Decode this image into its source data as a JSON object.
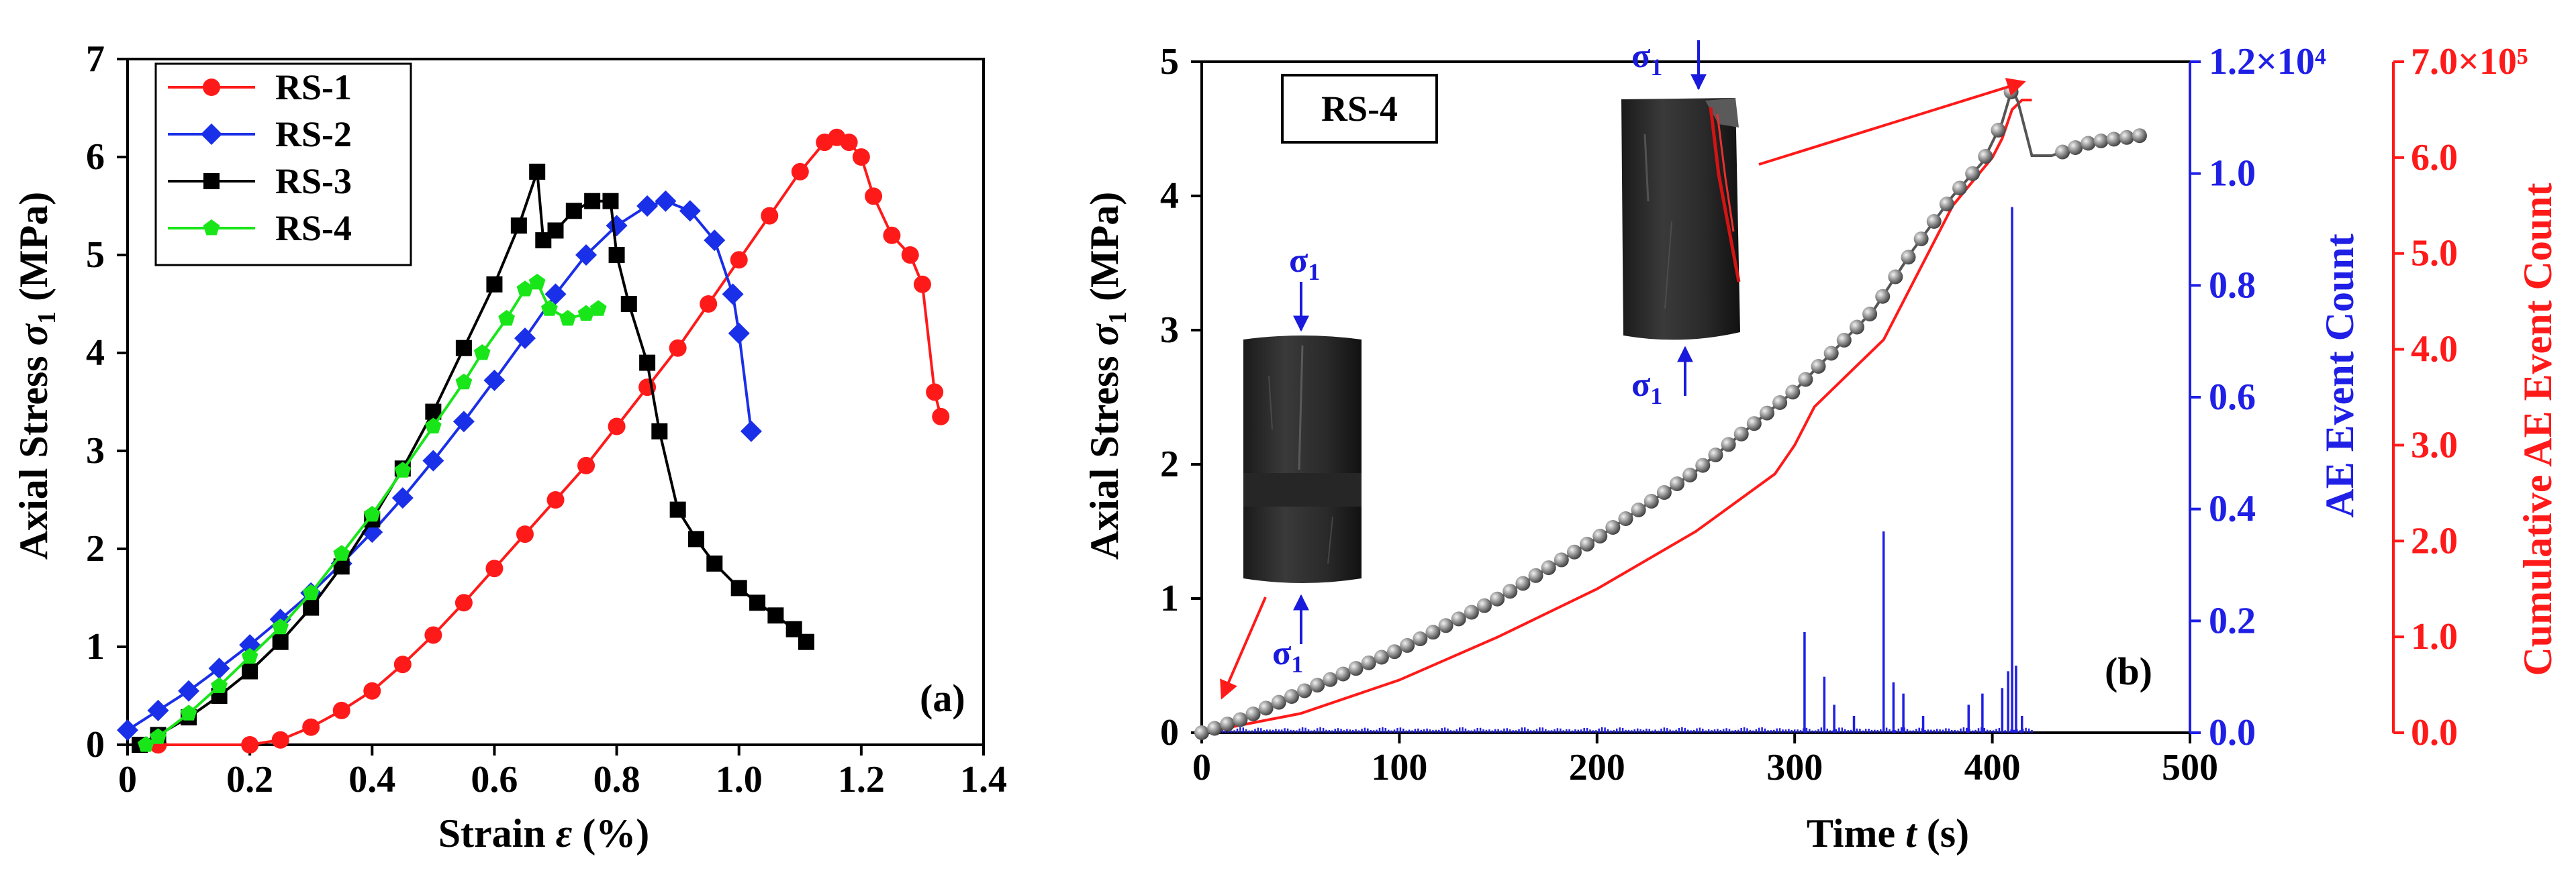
{
  "colors": {
    "rs1": "#ff1a1a",
    "rs2": "#1a2fe8",
    "rs3": "#000000",
    "rs4": "#19e619",
    "ae": "#1f1fe6",
    "cum": "#ff1a1a",
    "stress_marker": "#8a8a8a"
  },
  "chart_data": [
    {
      "type": "line",
      "panel_label": "(a)",
      "ylabel_parts": [
        "Axial Stress ",
        "σ",
        "1",
        " (MPa)"
      ],
      "xlabel_parts": [
        "Strain ",
        "ε",
        " (%)"
      ],
      "xlim": [
        0,
        1.4
      ],
      "ylim": [
        0,
        7
      ],
      "xticks": [
        "0",
        "0.2",
        "0.4",
        "0.6",
        "0.8",
        "1.0",
        "1.2",
        "1.4"
      ],
      "yticks": [
        "0",
        "1",
        "2",
        "3",
        "4",
        "5",
        "6",
        "7"
      ],
      "legend_position": "top-left",
      "series": [
        {
          "name": "RS-1",
          "marker": "circle",
          "points": [
            [
              0.05,
              0
            ],
            [
              0.2,
              0
            ],
            [
              0.25,
              0.05
            ],
            [
              0.3,
              0.18
            ],
            [
              0.35,
              0.35
            ],
            [
              0.4,
              0.55
            ],
            [
              0.45,
              0.82
            ],
            [
              0.5,
              1.12
            ],
            [
              0.55,
              1.45
            ],
            [
              0.6,
              1.8
            ],
            [
              0.65,
              2.15
            ],
            [
              0.7,
              2.5
            ],
            [
              0.75,
              2.85
            ],
            [
              0.8,
              3.25
            ],
            [
              0.85,
              3.65
            ],
            [
              0.9,
              4.05
            ],
            [
              0.95,
              4.5
            ],
            [
              1.0,
              4.95
            ],
            [
              1.05,
              5.4
            ],
            [
              1.1,
              5.85
            ],
            [
              1.14,
              6.15
            ],
            [
              1.16,
              6.2
            ],
            [
              1.18,
              6.15
            ],
            [
              1.2,
              6.0
            ],
            [
              1.22,
              5.6
            ],
            [
              1.25,
              5.2
            ],
            [
              1.28,
              5.0
            ],
            [
              1.3,
              4.7
            ],
            [
              1.32,
              3.6
            ],
            [
              1.33,
              3.35
            ]
          ]
        },
        {
          "name": "RS-2",
          "marker": "diamond",
          "points": [
            [
              0,
              0.15
            ],
            [
              0.05,
              0.35
            ],
            [
              0.1,
              0.55
            ],
            [
              0.15,
              0.78
            ],
            [
              0.2,
              1.02
            ],
            [
              0.25,
              1.28
            ],
            [
              0.3,
              1.55
            ],
            [
              0.35,
              1.85
            ],
            [
              0.4,
              2.17
            ],
            [
              0.45,
              2.52
            ],
            [
              0.5,
              2.9
            ],
            [
              0.55,
              3.3
            ],
            [
              0.6,
              3.72
            ],
            [
              0.65,
              4.15
            ],
            [
              0.7,
              4.6
            ],
            [
              0.75,
              5.0
            ],
            [
              0.8,
              5.3
            ],
            [
              0.85,
              5.5
            ],
            [
              0.88,
              5.55
            ],
            [
              0.92,
              5.45
            ],
            [
              0.96,
              5.15
            ],
            [
              0.99,
              4.6
            ],
            [
              1.0,
              4.2
            ],
            [
              1.02,
              3.2
            ]
          ]
        },
        {
          "name": "RS-3",
          "marker": "square",
          "points": [
            [
              0.02,
              0
            ],
            [
              0.05,
              0.1
            ],
            [
              0.1,
              0.28
            ],
            [
              0.15,
              0.5
            ],
            [
              0.2,
              0.75
            ],
            [
              0.25,
              1.05
            ],
            [
              0.3,
              1.4
            ],
            [
              0.35,
              1.82
            ],
            [
              0.4,
              2.3
            ],
            [
              0.45,
              2.82
            ],
            [
              0.5,
              3.4
            ],
            [
              0.55,
              4.05
            ],
            [
              0.6,
              4.7
            ],
            [
              0.64,
              5.3
            ],
            [
              0.67,
              5.85
            ],
            [
              0.68,
              5.15
            ],
            [
              0.7,
              5.25
            ],
            [
              0.73,
              5.45
            ],
            [
              0.76,
              5.55
            ],
            [
              0.79,
              5.55
            ],
            [
              0.8,
              5.0
            ],
            [
              0.82,
              4.5
            ],
            [
              0.85,
              3.9
            ],
            [
              0.87,
              3.2
            ],
            [
              0.9,
              2.4
            ],
            [
              0.93,
              2.1
            ],
            [
              0.96,
              1.85
            ],
            [
              1.0,
              1.6
            ],
            [
              1.03,
              1.45
            ],
            [
              1.06,
              1.32
            ],
            [
              1.09,
              1.18
            ],
            [
              1.11,
              1.05
            ]
          ]
        },
        {
          "name": "RS-4",
          "marker": "pentagon",
          "points": [
            [
              0.03,
              0
            ],
            [
              0.05,
              0.08
            ],
            [
              0.1,
              0.32
            ],
            [
              0.15,
              0.6
            ],
            [
              0.2,
              0.9
            ],
            [
              0.25,
              1.2
            ],
            [
              0.3,
              1.55
            ],
            [
              0.35,
              1.95
            ],
            [
              0.4,
              2.35
            ],
            [
              0.45,
              2.8
            ],
            [
              0.5,
              3.25
            ],
            [
              0.55,
              3.7
            ],
            [
              0.58,
              4.0
            ],
            [
              0.62,
              4.35
            ],
            [
              0.65,
              4.65
            ],
            [
              0.67,
              4.72
            ],
            [
              0.69,
              4.45
            ],
            [
              0.72,
              4.35
            ],
            [
              0.75,
              4.4
            ],
            [
              0.77,
              4.45
            ]
          ]
        }
      ]
    },
    {
      "type": "line",
      "panel_label": "(b)",
      "inset_label": "RS-4",
      "ylabel_parts": [
        "Axial Stress ",
        "σ",
        "1",
        " (MPa)"
      ],
      "xlabel_parts": [
        "Time ",
        "t",
        " (s)"
      ],
      "y2label": "AE Event Count",
      "y3label": "Cumulative AE Event Count",
      "xlim": [
        0,
        500
      ],
      "ylim": [
        0,
        5
      ],
      "y2lim": [
        0,
        12000
      ],
      "y3lim": [
        0,
        700000
      ],
      "xticks": [
        "0",
        "100",
        "200",
        "300",
        "400",
        "500"
      ],
      "yticks": [
        "0",
        "1",
        "2",
        "3",
        "4",
        "5"
      ],
      "y2ticks": [
        "0.0",
        "0.2",
        "0.4",
        "0.6",
        "0.8",
        "1.0",
        "1.2×10⁴"
      ],
      "y3ticks": [
        "0.0",
        "1.0",
        "2.0",
        "3.0",
        "4.0",
        "5.0",
        "6.0",
        "7.0×10⁵"
      ],
      "stress_points": [
        [
          0,
          0
        ],
        [
          20,
          0.1
        ],
        [
          50,
          0.3
        ],
        [
          100,
          0.62
        ],
        [
          150,
          1.0
        ],
        [
          200,
          1.45
        ],
        [
          250,
          1.95
        ],
        [
          300,
          2.55
        ],
        [
          340,
          3.15
        ],
        [
          360,
          3.6
        ],
        [
          380,
          4.0
        ],
        [
          395,
          4.25
        ],
        [
          405,
          4.55
        ],
        [
          410,
          4.8
        ],
        [
          413,
          4.7
        ],
        [
          420,
          4.3
        ],
        [
          430,
          4.3
        ],
        [
          450,
          4.4
        ],
        [
          475,
          4.45
        ]
      ],
      "ae_spikes": [
        [
          305,
          1800
        ],
        [
          315,
          1000
        ],
        [
          320,
          500
        ],
        [
          330,
          300
        ],
        [
          345,
          3600
        ],
        [
          350,
          900
        ],
        [
          355,
          700
        ],
        [
          365,
          300
        ],
        [
          388,
          500
        ],
        [
          395,
          700
        ],
        [
          405,
          800
        ],
        [
          408,
          1100
        ],
        [
          410,
          9400
        ],
        [
          412,
          1200
        ],
        [
          415,
          300
        ]
      ],
      "cumulative_points": [
        [
          0,
          0
        ],
        [
          50,
          20000
        ],
        [
          100,
          55000
        ],
        [
          150,
          100000
        ],
        [
          200,
          150000
        ],
        [
          250,
          210000
        ],
        [
          290,
          270000
        ],
        [
          300,
          300000
        ],
        [
          310,
          340000
        ],
        [
          330,
          380000
        ],
        [
          345,
          410000
        ],
        [
          360,
          470000
        ],
        [
          380,
          550000
        ],
        [
          400,
          600000
        ],
        [
          405,
          620000
        ],
        [
          410,
          650000
        ],
        [
          415,
          660000
        ],
        [
          420,
          660000
        ]
      ],
      "sigma_symbol": "σ",
      "sigma_sub": "1"
    }
  ]
}
